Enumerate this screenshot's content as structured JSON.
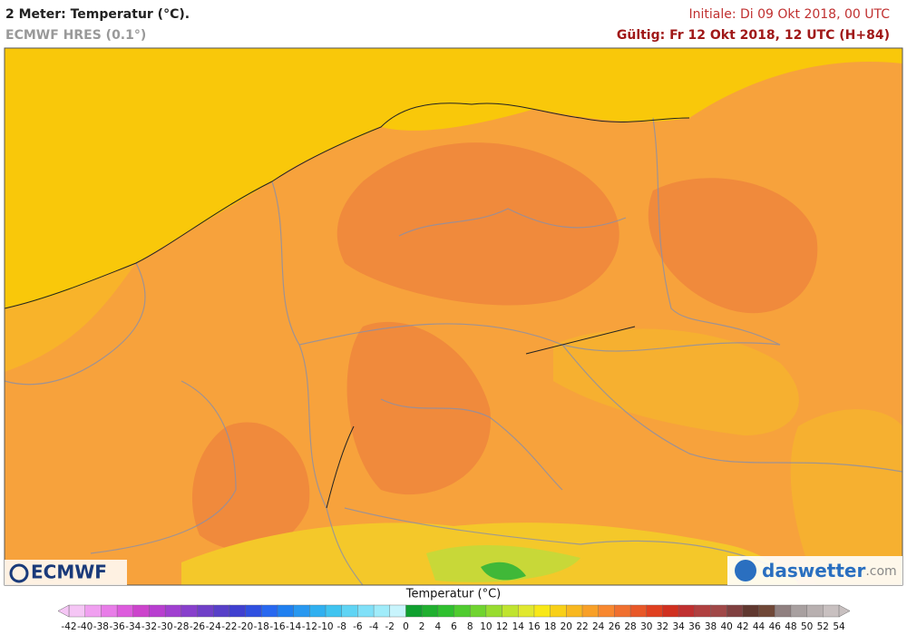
{
  "header": {
    "title": "2 Meter: Temperatur (°C).",
    "model": "ECMWF HRES (0.1°)",
    "init": "Initiale: Di 09 Okt 2018, 00 UTC",
    "valid": "Gültig: Fr 12 Okt 2018, 12 UTC (H+84)"
  },
  "logos": {
    "left": "ECMWF",
    "right_name": "daswetter",
    "right_suffix": ".com"
  },
  "colorbar": {
    "title": "Temperatur (°C)",
    "labels": [
      -42,
      -40,
      -38,
      -36,
      -34,
      -32,
      -30,
      -28,
      -26,
      -24,
      -22,
      -20,
      -18,
      -16,
      -14,
      -12,
      -10,
      -8,
      -6,
      -4,
      -2,
      0,
      2,
      4,
      6,
      8,
      10,
      12,
      14,
      16,
      18,
      20,
      22,
      24,
      26,
      28,
      30,
      32,
      34,
      36,
      38,
      40,
      42,
      44,
      46,
      48,
      50,
      52,
      54
    ],
    "colors": [
      "#f5c6f5",
      "#f0a0f0",
      "#e87de8",
      "#dd5cdd",
      "#cc44cc",
      "#b83fd0",
      "#a040d0",
      "#8840cc",
      "#7040c8",
      "#5840c8",
      "#4040d0",
      "#3050e0",
      "#2868f0",
      "#2080f0",
      "#2898f0",
      "#30b0f0",
      "#40c4f0",
      "#60d4f4",
      "#80e0f8",
      "#a0ecfa",
      "#c8f4fc",
      "#10a030",
      "#20b030",
      "#30c030",
      "#50cc30",
      "#70d430",
      "#98dc30",
      "#c0e430",
      "#e0e830",
      "#f8e818",
      "#f8d018",
      "#f8b820",
      "#f8a028",
      "#f88830",
      "#f07030",
      "#e85828",
      "#e04020",
      "#d03020",
      "#c03030",
      "#b04040",
      "#a04848",
      "#804040",
      "#603830",
      "#704838",
      "#908080",
      "#a8a0a0",
      "#b8b0b0",
      "#c8c0c0"
    ]
  }
}
